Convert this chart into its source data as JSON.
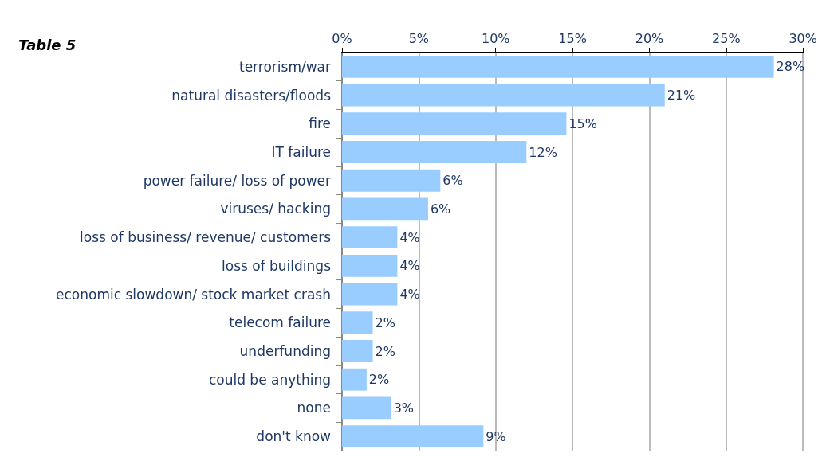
{
  "chart_data": {
    "type": "bar",
    "orientation": "horizontal",
    "title": "Table 5",
    "categories": [
      "terrorism/war",
      "natural disasters/floods",
      "fire",
      "IT failure",
      "power failure/ loss of power",
      "viruses/ hacking",
      "loss of business/ revenue/ customers",
      "loss of buildings",
      "economic slowdown/ stock market crash",
      "telecom failure",
      "underfunding",
      "could be anything",
      "none",
      "don't know"
    ],
    "values": [
      28.1,
      21.0,
      14.6,
      12.0,
      6.4,
      5.6,
      3.6,
      3.6,
      3.6,
      2.0,
      2.0,
      1.6,
      3.2,
      9.2
    ],
    "value_labels": [
      "28%",
      "21%",
      "15%",
      "12%",
      "6%",
      "6%",
      "4%",
      "4%",
      "4%",
      "2%",
      "2%",
      "2%",
      "3%",
      "9%"
    ],
    "color": "#99ccff",
    "xlim": [
      0,
      30
    ],
    "xticks": [
      {
        "value": 0,
        "label": "0%"
      },
      {
        "value": 5,
        "label": "5%"
      },
      {
        "value": 10,
        "label": "10%"
      },
      {
        "value": 15,
        "label": "15%"
      },
      {
        "value": 20,
        "label": "20%"
      },
      {
        "value": 25,
        "label": "25%"
      },
      {
        "value": 30,
        "label": "30%"
      }
    ],
    "grid": "x"
  }
}
